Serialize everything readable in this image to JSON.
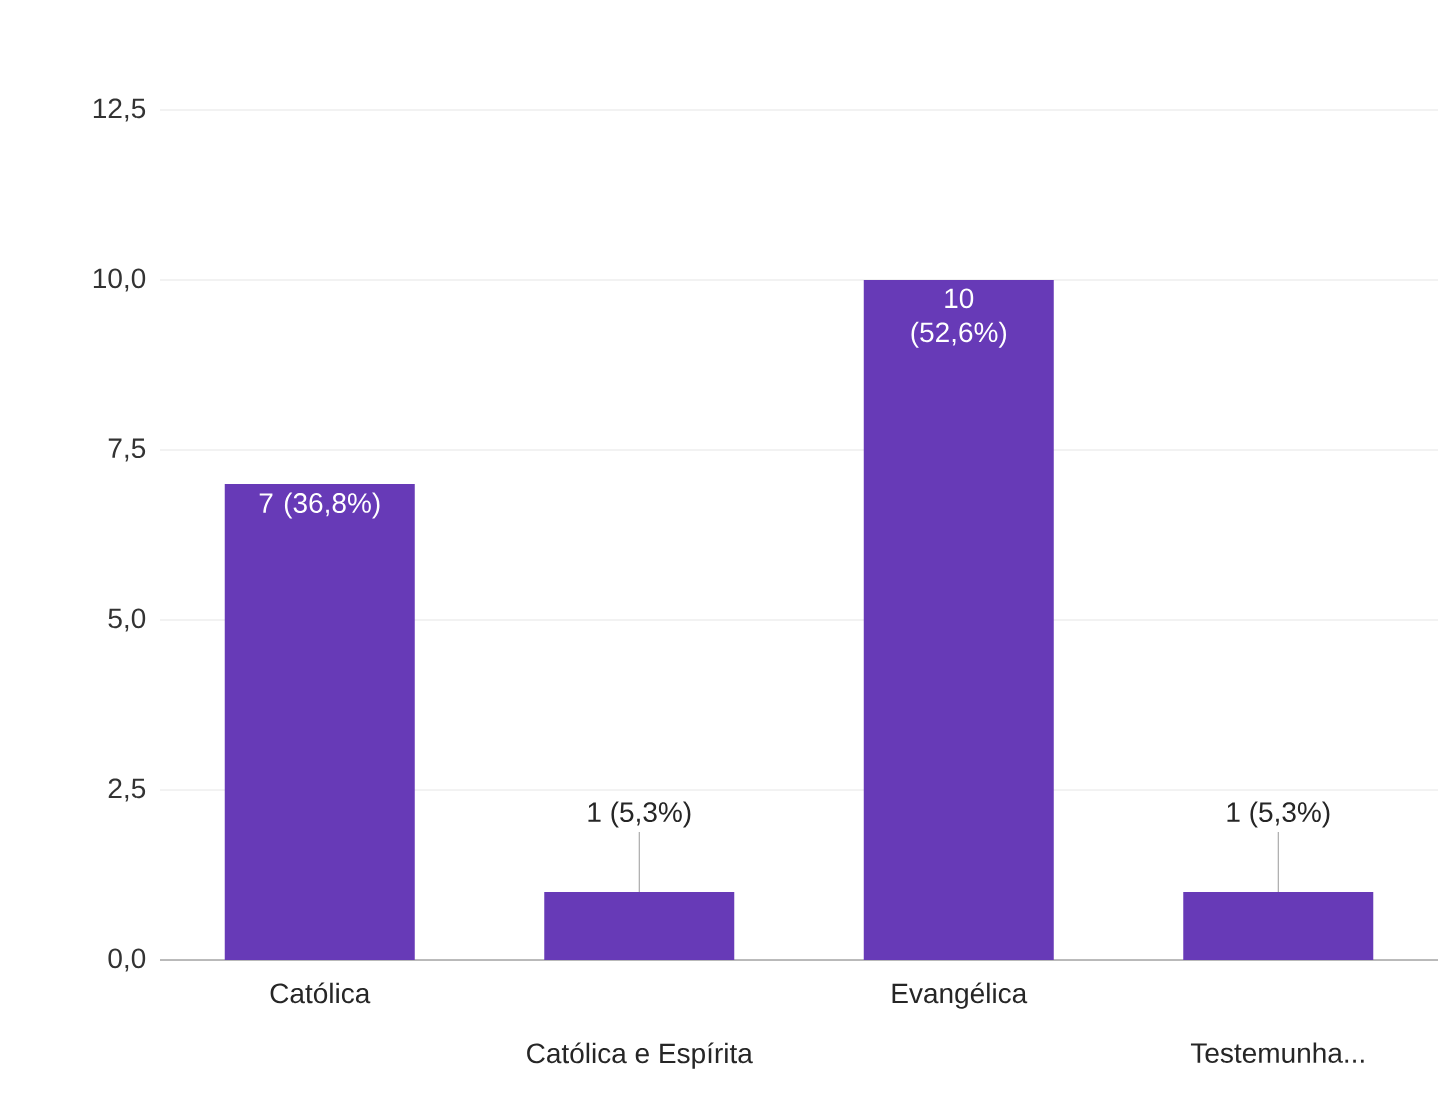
{
  "chart_data": {
    "type": "bar",
    "categories": [
      "Católica",
      "Católica e Espírita",
      "Evangélica",
      "Testemunha..."
    ],
    "values": [
      7,
      1,
      10,
      1
    ],
    "value_labels": [
      "7 (36,8%)",
      "1 (5,3%)",
      "10 (52,6%)",
      "1 (5,3%)"
    ],
    "color": "#673ab7",
    "ylim": [
      0,
      12.5
    ],
    "yticks": [
      {
        "value": 0,
        "label": "0,0"
      },
      {
        "value": 2.5,
        "label": "2,5"
      },
      {
        "value": 5,
        "label": "5,0"
      },
      {
        "value": 7.5,
        "label": "7,5"
      },
      {
        "value": 10,
        "label": "10,0"
      },
      {
        "value": 12.5,
        "label": "12,5"
      }
    ],
    "grid": "y"
  }
}
